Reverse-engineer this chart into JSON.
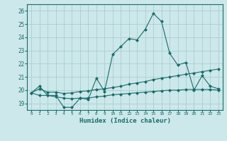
{
  "title": "",
  "xlabel": "Humidex (Indice chaleur)",
  "background_color": "#cce8ea",
  "grid_color": "#aacdd0",
  "line_color": "#1a6b6b",
  "xlim": [
    -0.5,
    23.5
  ],
  "ylim": [
    18.5,
    26.5
  ],
  "xticks": [
    0,
    1,
    2,
    3,
    4,
    5,
    6,
    7,
    8,
    9,
    10,
    11,
    12,
    13,
    14,
    15,
    16,
    17,
    18,
    19,
    20,
    21,
    22,
    23
  ],
  "yticks": [
    19,
    20,
    21,
    22,
    23,
    24,
    25,
    26
  ],
  "line1_x": [
    0,
    1,
    2,
    3,
    4,
    5,
    6,
    7,
    8,
    9,
    10,
    11,
    12,
    13,
    14,
    15,
    16,
    17,
    18,
    19,
    20,
    21,
    22,
    23
  ],
  "line1_y": [
    19.8,
    20.3,
    19.6,
    19.6,
    18.7,
    18.7,
    19.4,
    19.3,
    20.9,
    19.9,
    22.7,
    23.3,
    23.9,
    23.8,
    24.6,
    25.8,
    25.2,
    22.8,
    21.9,
    22.1,
    20.0,
    21.1,
    20.3,
    20.1
  ],
  "line2_x": [
    0,
    1,
    2,
    3,
    4,
    5,
    6,
    7,
    8,
    9,
    10,
    11,
    12,
    13,
    14,
    15,
    16,
    17,
    18,
    19,
    20,
    21,
    22,
    23
  ],
  "line2_y": [
    19.8,
    20.1,
    19.85,
    19.85,
    19.75,
    19.8,
    19.9,
    19.95,
    20.05,
    20.1,
    20.2,
    20.3,
    20.45,
    20.55,
    20.65,
    20.8,
    20.9,
    21.0,
    21.1,
    21.2,
    21.3,
    21.4,
    21.5,
    21.6
  ],
  "line3_x": [
    0,
    1,
    2,
    3,
    4,
    5,
    6,
    7,
    8,
    9,
    10,
    11,
    12,
    13,
    14,
    15,
    16,
    17,
    18,
    19,
    20,
    21,
    22,
    23
  ],
  "line3_y": [
    19.8,
    19.6,
    19.6,
    19.5,
    19.4,
    19.35,
    19.4,
    19.4,
    19.5,
    19.55,
    19.65,
    19.7,
    19.75,
    19.8,
    19.85,
    19.9,
    19.95,
    20.0,
    20.0,
    20.05,
    20.05,
    20.05,
    20.05,
    20.0
  ]
}
